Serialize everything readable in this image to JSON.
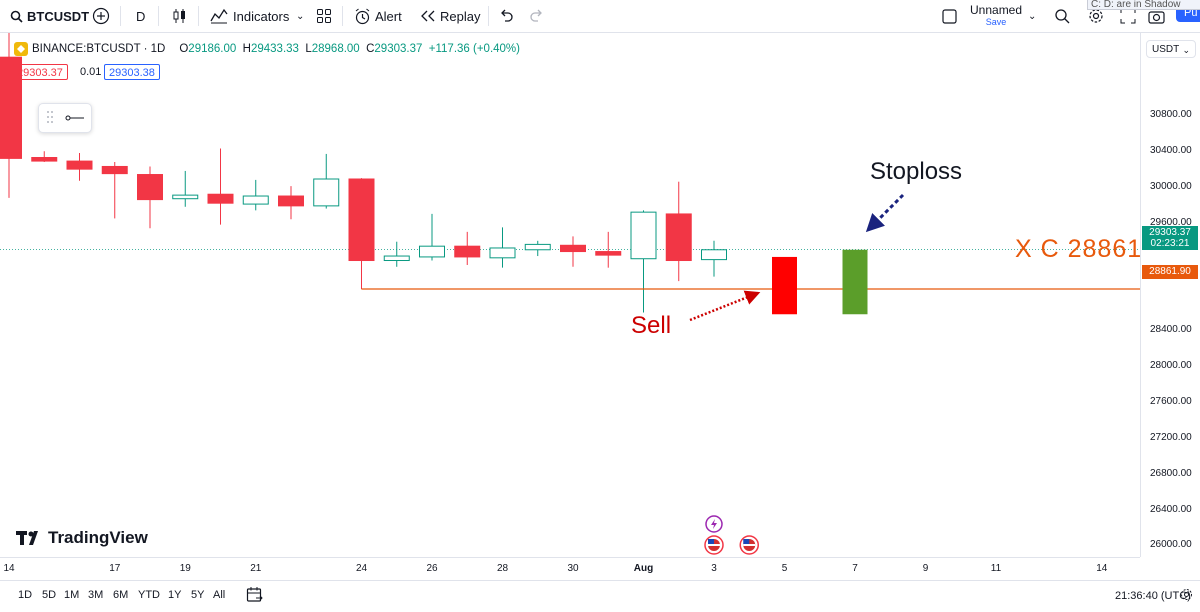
{
  "toolbar": {
    "symbol": "BTCUSDT",
    "interval": "D",
    "indicators_label": "Indicators",
    "alert_label": "Alert",
    "replay_label": "Replay",
    "layout_name": "Unnamed",
    "layout_status": "Save",
    "tooltip": "C: D: are in Shadow",
    "publish_label": "Pu"
  },
  "legend": {
    "symbol_title": "BINANCE:BTCUSDT · 1D",
    "open": "29186.00",
    "high": "29433.33",
    "low": "28968.00",
    "close": "29303.37",
    "change": "+117.36 (+0.40%)",
    "sell_price": "29303.37",
    "spread": "0.01",
    "buy_price": "29303.38"
  },
  "price_axis": {
    "currency": "USDT",
    "ticks": [
      "30800.00",
      "30400.00",
      "30000.00",
      "29600.00",
      "28400.00",
      "28000.00",
      "27600.00",
      "27200.00",
      "26800.00",
      "26400.00",
      "26000.00"
    ],
    "last_price": "29303.37",
    "countdown": "02:23:21",
    "hline_label": "28861.90"
  },
  "time_axis": {
    "ticks": [
      "14",
      "17",
      "19",
      "21",
      "24",
      "26",
      "28",
      "30",
      "Aug",
      "3",
      "5",
      "7",
      "9",
      "11",
      "14"
    ]
  },
  "annotations": {
    "stoploss": "Stoploss",
    "sell": "Sell",
    "level": "X C 28861"
  },
  "branding": {
    "logo_text": "TradingView"
  },
  "bottom_bar": {
    "ranges": [
      "1D",
      "5D",
      "1M",
      "3M",
      "6M",
      "YTD",
      "1Y",
      "5Y",
      "All"
    ],
    "clock": "21:36:40 (UTC)"
  },
  "colors": {
    "up": "#089981",
    "down": "#f23645",
    "hline": "#e8590c",
    "sell_block": "#ff0000",
    "stop_block": "#5b9e2a",
    "accent": "#2962ff"
  },
  "chart_data": {
    "type": "candlestick",
    "dates": [
      "Jul 14",
      "Jul 15",
      "Jul 16",
      "Jul 17",
      "Jul 18",
      "Jul 19",
      "Jul 20",
      "Jul 21",
      "Jul 22",
      "Jul 23",
      "Jul 24",
      "Jul 25",
      "Jul 26",
      "Jul 27",
      "Jul 28",
      "Jul 29",
      "Jul 30",
      "Jul 31",
      "Aug 1",
      "Aug 2",
      "Aug 3"
    ],
    "open": [
      31450,
      30330,
      30290,
      30230,
      30140,
      29870,
      29920,
      29810,
      29900,
      29790,
      30090,
      29180,
      29220,
      29340,
      29210,
      29300,
      29350,
      29280,
      29200,
      29700,
      29190
    ],
    "high": [
      31800,
      30400,
      30380,
      30280,
      30230,
      30180,
      30430,
      30080,
      30010,
      30370,
      30100,
      29390,
      29700,
      29500,
      29550,
      29400,
      29450,
      29500,
      29740,
      30060,
      29400
    ],
    "low": [
      29880,
      30280,
      30070,
      29650,
      29540,
      29780,
      29580,
      29740,
      29640,
      29760,
      28860,
      29110,
      29180,
      29130,
      29100,
      29230,
      29110,
      29100,
      28600,
      28950,
      29000
    ],
    "close": [
      30320,
      30290,
      30200,
      30150,
      29860,
      29910,
      29820,
      29900,
      29790,
      30090,
      29180,
      29230,
      29340,
      29220,
      29320,
      29360,
      29280,
      29240,
      29720,
      29180,
      29300
    ],
    "ylim": [
      25870,
      31720
    ],
    "horizontal_line": 28861.9,
    "drawn_blocks": [
      {
        "label": "Sell",
        "date": "Aug 5",
        "top": 29220,
        "bottom": 28580
      },
      {
        "label": "Stoploss",
        "date": "Aug 7",
        "top": 29300,
        "bottom": 28580
      }
    ]
  }
}
